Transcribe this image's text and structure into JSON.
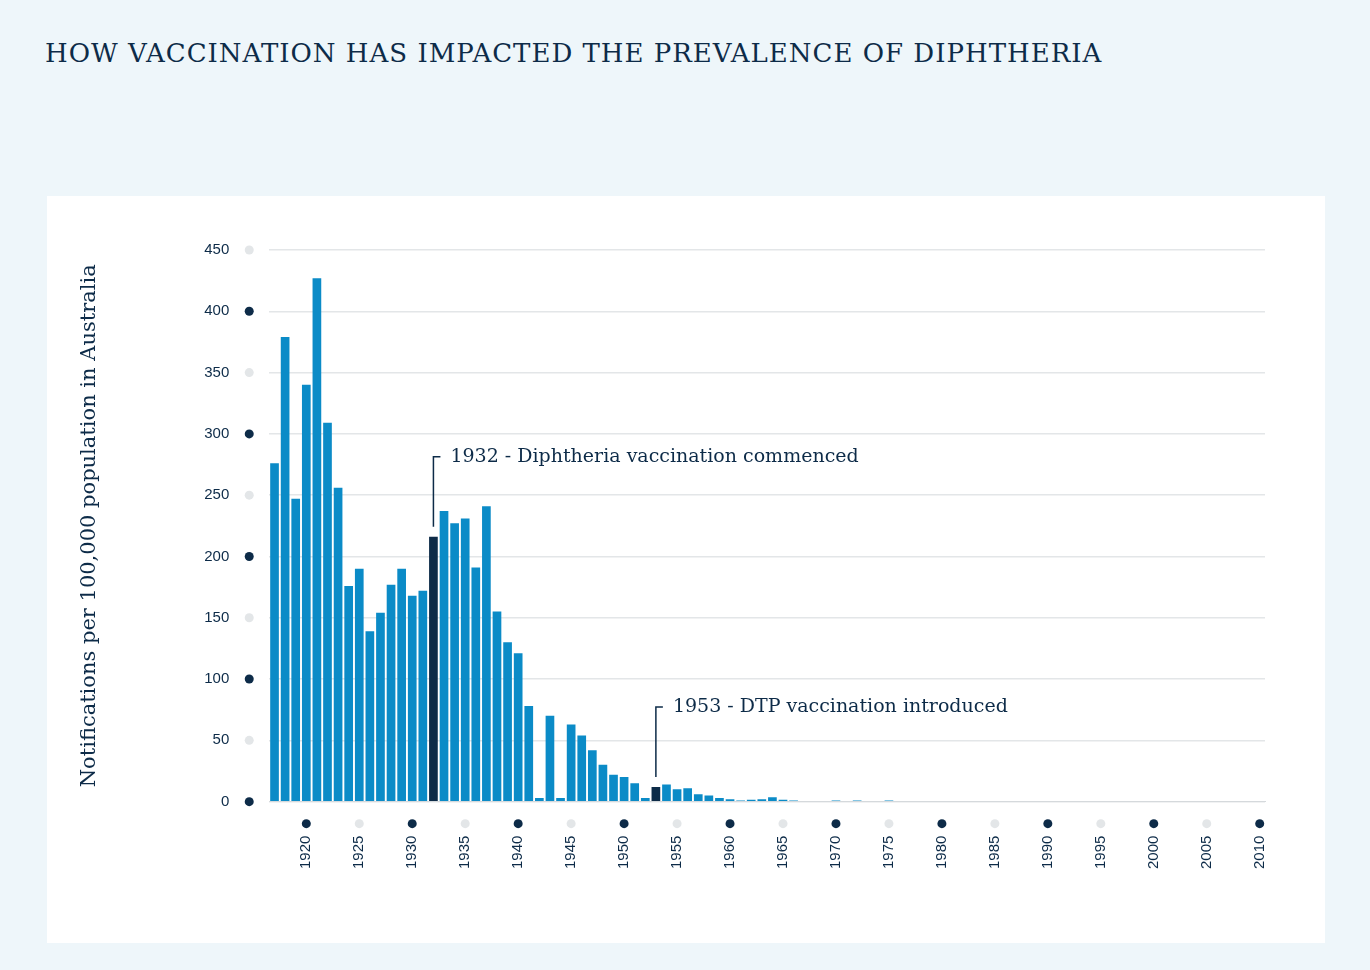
{
  "chart_data": {
    "type": "bar",
    "title": "HOW VACCINATION HAS IMPACTED THE PREVALENCE OF DIPHTHERIA",
    "y_label": "Notifications per 100,000 population in Australia",
    "x": [
      1917,
      1918,
      1919,
      1920,
      1921,
      1922,
      1923,
      1924,
      1925,
      1926,
      1927,
      1928,
      1929,
      1930,
      1931,
      1932,
      1933,
      1934,
      1935,
      1936,
      1937,
      1938,
      1939,
      1940,
      1941,
      1942,
      1943,
      1944,
      1945,
      1946,
      1947,
      1948,
      1949,
      1950,
      1951,
      1952,
      1953,
      1954,
      1955,
      1956,
      1957,
      1958,
      1959,
      1960,
      1961,
      1962,
      1963,
      1964,
      1965,
      1966,
      1967,
      1968,
      1969,
      1970,
      1971,
      1972,
      1973,
      1974,
      1975,
      1976,
      1977,
      1978,
      1979,
      1980,
      1981,
      1982,
      1983,
      1984,
      1985,
      1986,
      1987,
      1988,
      1989,
      1990,
      1991,
      1992,
      1993,
      1994,
      1995,
      1996,
      1997,
      1998,
      1999,
      2000,
      2001,
      2002,
      2003,
      2004,
      2005,
      2006,
      2007,
      2008,
      2009,
      2010
    ],
    "values": [
      276,
      379,
      247,
      340,
      427,
      309,
      256,
      176,
      190,
      139,
      154,
      177,
      190,
      168,
      172,
      216,
      237,
      227,
      231,
      191,
      241,
      155,
      130,
      121,
      78,
      3,
      70,
      3,
      63,
      54,
      42,
      30,
      22,
      20,
      15,
      3,
      12,
      14,
      10,
      11,
      6,
      5,
      3,
      2,
      1,
      1.5,
      2,
      3.5,
      1.5,
      1,
      0.5,
      0.5,
      0.5,
      1,
      0.5,
      1,
      0.5,
      0.5,
      1,
      0.5,
      0.5,
      0.5,
      0.5,
      0.5,
      0.5,
      0.5,
      0.5,
      0.5,
      0.5,
      0.5,
      0.5,
      0.5,
      0.5,
      0.5,
      0.5,
      0.5,
      0.5,
      0.5,
      0.5,
      0.5,
      0.5,
      0.5,
      0.5,
      0.5,
      0.5,
      0.5,
      0.5,
      0.5,
      0.5,
      0.5,
      0.5,
      0.5,
      0.5,
      0.5
    ],
    "colors": [
      "#0b8bc7",
      "#0b8bc7",
      "#0b8bc7",
      "#0b8bc7",
      "#0b8bc7",
      "#0b8bc7",
      "#0b8bc7",
      "#0b8bc7",
      "#0b8bc7",
      "#0b8bc7",
      "#0b8bc7",
      "#0b8bc7",
      "#0b8bc7",
      "#0b8bc7",
      "#0b8bc7",
      "#0d2b48",
      "#0b8bc7",
      "#0b8bc7",
      "#0b8bc7",
      "#0b8bc7",
      "#0b8bc7",
      "#0b8bc7",
      "#0b8bc7",
      "#0b8bc7",
      "#0b8bc7",
      "#0b8bc7",
      "#0b8bc7",
      "#0b8bc7",
      "#0b8bc7",
      "#0b8bc7",
      "#0b8bc7",
      "#0b8bc7",
      "#0b8bc7",
      "#0b8bc7",
      "#0b8bc7",
      "#0b8bc7",
      "#0d2b48",
      "#0b8bc7",
      "#0b8bc7",
      "#0b8bc7",
      "#0b8bc7",
      "#0b8bc7",
      "#0b8bc7",
      "#0b8bc7",
      "#0b8bc7",
      "#0b8bc7",
      "#0b8bc7",
      "#0b8bc7",
      "#0b8bc7",
      "#0b8bc7",
      "#0b8bc7",
      "#0b8bc7",
      "#0b8bc7",
      "#0b8bc7",
      "#0b8bc7",
      "#0b8bc7",
      "#0b8bc7",
      "#0b8bc7",
      "#0b8bc7",
      "#0b8bc7",
      "#0b8bc7",
      "#0b8bc7",
      "#0b8bc7",
      "#0b8bc7",
      "#0b8bc7",
      "#0b8bc7",
      "#0b8bc7",
      "#0b8bc7",
      "#0b8bc7",
      "#0b8bc7",
      "#0b8bc7",
      "#0b8bc7",
      "#0b8bc7",
      "#0b8bc7",
      "#0b8bc7",
      "#0b8bc7",
      "#0b8bc7",
      "#0b8bc7",
      "#0b8bc7",
      "#0b8bc7",
      "#0b8bc7",
      "#0b8bc7",
      "#0b8bc7",
      "#0b8bc7",
      "#0b8bc7",
      "#0b8bc7",
      "#0b8bc7",
      "#0b8bc7",
      "#0b8bc7",
      "#0b8bc7",
      "#0b8bc7",
      "#0b8bc7",
      "#0b8bc7",
      "#0b8bc7"
    ],
    "xlim": [
      1916.5,
      2010.5
    ],
    "xticks": [
      1920,
      1925,
      1930,
      1935,
      1940,
      1945,
      1950,
      1955,
      1960,
      1965,
      1970,
      1975,
      1980,
      1985,
      1990,
      1995,
      2000,
      2005,
      2010
    ],
    "ylim": [
      0,
      450
    ],
    "yticks": [
      0,
      50,
      100,
      150,
      200,
      250,
      300,
      350,
      400,
      450
    ],
    "grid": true,
    "annotations": [
      {
        "x": 1932,
        "text": "1932 - Diphtheria vaccination commenced"
      },
      {
        "x": 1953,
        "text": "1953 - DTP vaccination introduced"
      }
    ]
  }
}
